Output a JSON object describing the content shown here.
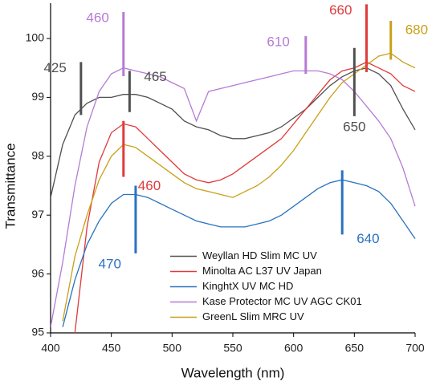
{
  "chart_data": {
    "type": "line",
    "x_label": "Wavelength (nm)",
    "y_label": "Transmittance",
    "x": [
      400,
      410,
      420,
      430,
      440,
      450,
      460,
      470,
      480,
      490,
      500,
      510,
      520,
      530,
      540,
      550,
      560,
      570,
      580,
      590,
      600,
      610,
      620,
      630,
      640,
      650,
      660,
      670,
      680,
      690,
      700
    ],
    "series": [
      {
        "name": "Weyllan HD Slim MC UV",
        "color": "#505050",
        "values": [
          97.3,
          98.2,
          98.7,
          98.9,
          99.0,
          99.0,
          99.05,
          99.05,
          99.0,
          98.9,
          98.8,
          98.6,
          98.5,
          98.45,
          98.35,
          98.3,
          98.3,
          98.35,
          98.4,
          98.5,
          98.65,
          98.8,
          99.0,
          99.2,
          99.35,
          99.45,
          99.5,
          99.4,
          99.2,
          98.8,
          98.45
        ]
      },
      {
        "name": "Minolta AC L37 UV Japan",
        "color": "#e03a3a",
        "values": [
          null,
          null,
          95.0,
          96.8,
          97.9,
          98.4,
          98.55,
          98.5,
          98.3,
          98.1,
          97.9,
          97.7,
          97.6,
          97.55,
          97.6,
          97.7,
          97.85,
          98.0,
          98.15,
          98.3,
          98.55,
          98.8,
          99.05,
          99.3,
          99.45,
          99.5,
          99.6,
          99.5,
          99.4,
          99.2,
          99.1
        ]
      },
      {
        "name": "KinghtX UV MC HD",
        "color": "#2a72c0",
        "values": [
          null,
          95.1,
          95.9,
          96.5,
          96.9,
          97.2,
          97.35,
          97.35,
          97.3,
          97.2,
          97.1,
          97.0,
          96.9,
          96.85,
          96.8,
          96.8,
          96.8,
          96.85,
          96.9,
          97.0,
          97.15,
          97.3,
          97.45,
          97.55,
          97.6,
          97.55,
          97.5,
          97.4,
          97.2,
          96.9,
          96.6
        ]
      },
      {
        "name": "Kase Protector MC UV AGC CK01",
        "color": "#b57bd6",
        "values": [
          95.1,
          96.2,
          97.5,
          98.5,
          99.1,
          99.4,
          99.5,
          99.45,
          99.4,
          99.35,
          99.25,
          99.15,
          98.6,
          99.1,
          99.15,
          99.2,
          99.25,
          99.3,
          99.35,
          99.4,
          99.45,
          99.45,
          99.45,
          99.4,
          99.3,
          99.1,
          98.85,
          98.6,
          98.3,
          97.8,
          97.15
        ]
      },
      {
        "name": "GreenL Slim MRC UV",
        "color": "#c8a018",
        "values": [
          null,
          95.2,
          96.3,
          97.0,
          97.6,
          98.0,
          98.2,
          98.15,
          98.0,
          97.85,
          97.7,
          97.55,
          97.45,
          97.4,
          97.35,
          97.3,
          97.4,
          97.5,
          97.65,
          97.85,
          98.1,
          98.4,
          98.7,
          99.0,
          99.25,
          99.4,
          99.55,
          99.7,
          99.75,
          99.6,
          99.5
        ]
      }
    ],
    "annotations": [
      {
        "x": 425,
        "y1": 99.6,
        "y2": 98.7,
        "color": "#505050"
      },
      {
        "x": 465,
        "y1": 99.45,
        "y2": 98.75,
        "color": "#505050"
      },
      {
        "x": 460,
        "y1": 100.45,
        "y2": 99.36,
        "color": "#b57bd6"
      },
      {
        "x": 460,
        "y1": 98.6,
        "y2": 97.65,
        "color": "#e03a3a"
      },
      {
        "x": 470,
        "y1": 97.5,
        "y2": 96.35,
        "color": "#2a72c0"
      },
      {
        "x": 610,
        "y1": 100.04,
        "y2": 99.4,
        "color": "#b57bd6"
      },
      {
        "x": 660,
        "y1": 100.58,
        "y2": 99.43,
        "color": "#e03a3a"
      },
      {
        "x": 650,
        "y1": 99.84,
        "y2": 98.68,
        "color": "#505050"
      },
      {
        "x": 680,
        "y1": 100.3,
        "y2": 99.64,
        "color": "#c8a018"
      },
      {
        "x": 640,
        "y1": 97.76,
        "y2": 96.67,
        "color": "#2a72c0"
      }
    ],
    "xlim": [
      400,
      700
    ],
    "ylim": [
      95,
      100.6
    ],
    "xticks": [
      400,
      450,
      500,
      550,
      600,
      650,
      700
    ],
    "yticks": [
      95,
      96,
      97,
      98,
      99,
      100
    ],
    "legend": "lower right"
  }
}
